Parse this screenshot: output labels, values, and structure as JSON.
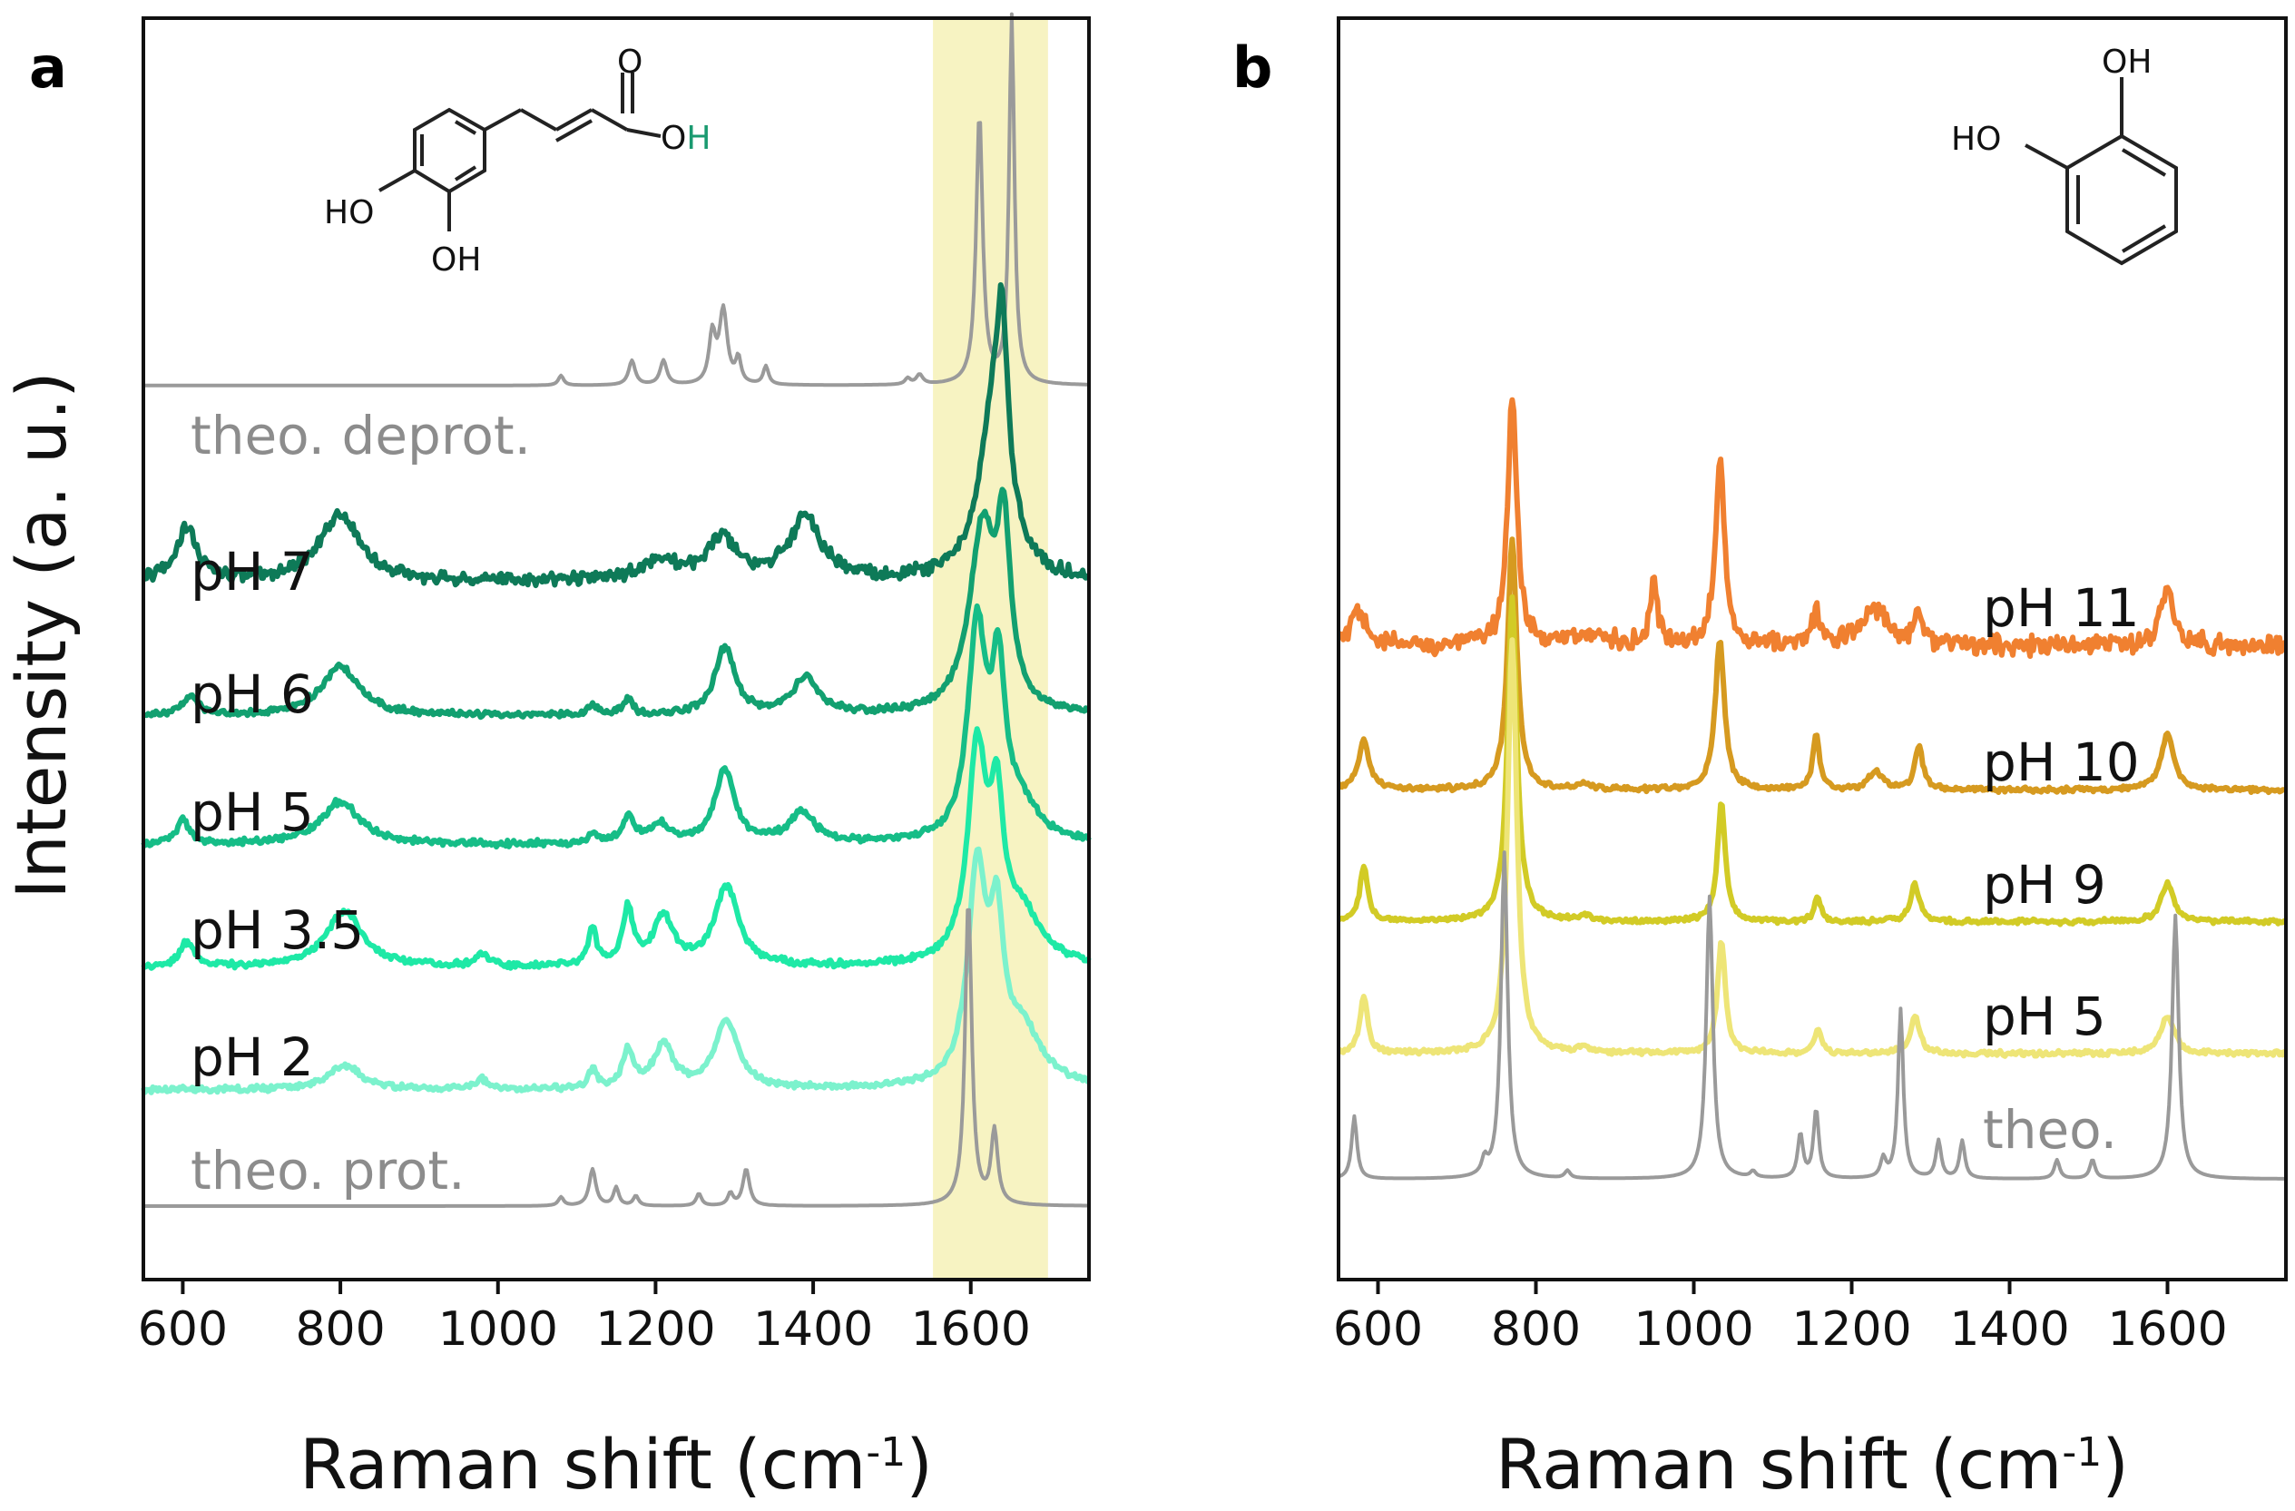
{
  "figure": {
    "ylabel": "Intensity (a. u.)",
    "panel_a_letter": "a",
    "panel_b_letter": "b"
  },
  "molecules": {
    "a": {
      "atom_O": "O",
      "atom_OH_O": "O",
      "atom_OH_H": "H",
      "ho_left": "HO",
      "oh_bottom": "OH"
    },
    "b": {
      "oh_top": "OH",
      "ho_left": "HO"
    }
  },
  "chart_data": [
    {
      "type": "line",
      "panel": "a",
      "title": "",
      "xlabel": "Raman shift (cm",
      "xlabel_sup": "-1",
      "xlabel_close": ")",
      "ylabel": "Intensity (a. u.)",
      "xlim": [
        550,
        1750
      ],
      "xticks": [
        600,
        800,
        1000,
        1200,
        1400,
        1600
      ],
      "highlight_band": {
        "x0": 1552,
        "x1": 1698,
        "color": "#f7f3c2"
      },
      "y_scale": "stacked, arbitrary units",
      "series": [
        {
          "name": "theo. deprot.",
          "color": "#9a9a9a",
          "label_color": "#8c8c8c",
          "baseline": 7.3,
          "noise": 0,
          "width": 4,
          "peaks": [
            [
              1611,
              2.2,
              5
            ],
            [
              1652,
              3.0,
              4
            ],
            [
              1286,
              0.6,
              6
            ],
            [
              1272,
              0.4,
              5
            ],
            [
              1210,
              0.2,
              5
            ],
            [
              1170,
              0.2,
              5
            ],
            [
              1305,
              0.2,
              4
            ],
            [
              1340,
              0.15,
              4
            ],
            [
              1080,
              0.08,
              4
            ],
            [
              1535,
              0.08,
              5
            ],
            [
              1520,
              0.05,
              4
            ]
          ]
        },
        {
          "name": "pH 7",
          "color": "#0e7a58",
          "label_color": "#111111",
          "baseline": 5.7,
          "noise": 0.08,
          "width": 6,
          "peaks": [
            [
              1630,
              1.4,
              22
            ],
            [
              1640,
              1.2,
              8
            ],
            [
              800,
              0.55,
              30
            ],
            [
              1390,
              0.5,
              25
            ],
            [
              1285,
              0.35,
              20
            ],
            [
              605,
              0.45,
              15
            ],
            [
              1205,
              0.15,
              30
            ]
          ]
        },
        {
          "name": "pH 6",
          "color": "#12a070",
          "label_color": "#111111",
          "baseline": 4.6,
          "noise": 0.04,
          "width": 6,
          "peaks": [
            [
              1615,
              1.5,
              20
            ],
            [
              1642,
              1.3,
              10
            ],
            [
              800,
              0.4,
              30
            ],
            [
              1288,
              0.55,
              15
            ],
            [
              1390,
              0.3,
              20
            ],
            [
              1165,
              0.12,
              8
            ],
            [
              1120,
              0.08,
              8
            ],
            [
              610,
              0.15,
              12
            ]
          ]
        },
        {
          "name": "pH 5",
          "color": "#16bd87",
          "label_color": "#111111",
          "baseline": 3.55,
          "noise": 0.04,
          "width": 6,
          "peaks": [
            [
              1608,
              1.7,
              14
            ],
            [
              1635,
              1.2,
              10
            ],
            [
              1660,
              0.3,
              30
            ],
            [
              800,
              0.35,
              30
            ],
            [
              1288,
              0.6,
              15
            ],
            [
              1385,
              0.25,
              20
            ],
            [
              1165,
              0.2,
              10
            ],
            [
              1205,
              0.15,
              15
            ],
            [
              1120,
              0.08,
              6
            ],
            [
              600,
              0.2,
              10
            ]
          ]
        },
        {
          "name": "pH 3.5",
          "color": "#1ee9a6",
          "label_color": "#111111",
          "baseline": 2.55,
          "noise": 0.04,
          "width": 6,
          "peaks": [
            [
              1608,
              1.7,
              14
            ],
            [
              1633,
              1.1,
              10
            ],
            [
              1665,
              0.4,
              30
            ],
            [
              805,
              0.45,
              28
            ],
            [
              1290,
              0.65,
              18
            ],
            [
              1165,
              0.45,
              8
            ],
            [
              1210,
              0.4,
              15
            ],
            [
              1120,
              0.3,
              6
            ],
            [
              980,
              0.1,
              10
            ],
            [
              605,
              0.2,
              10
            ]
          ]
        },
        {
          "name": "pH 2",
          "color": "#7cf2cd",
          "label_color": "#111111",
          "baseline": 1.55,
          "noise": 0.035,
          "width": 6,
          "peaks": [
            [
              1608,
              1.7,
              14
            ],
            [
              1633,
              1.1,
              10
            ],
            [
              1665,
              0.45,
              30
            ],
            [
              805,
              0.2,
              25
            ],
            [
              1290,
              0.55,
              18
            ],
            [
              1165,
              0.3,
              8
            ],
            [
              1210,
              0.35,
              15
            ],
            [
              1120,
              0.15,
              6
            ],
            [
              980,
              0.08,
              10
            ]
          ]
        },
        {
          "name": "theo. prot.",
          "color": "#9a9a9a",
          "label_color": "#8c8c8c",
          "baseline": 0.6,
          "noise": 0,
          "width": 4,
          "peaks": [
            [
              1597,
              2.5,
              5
            ],
            [
              1630,
              0.6,
              5
            ],
            [
              1120,
              0.3,
              5
            ],
            [
              1150,
              0.15,
              4
            ],
            [
              1315,
              0.3,
              5
            ],
            [
              1255,
              0.1,
              4
            ],
            [
              1295,
              0.1,
              4
            ],
            [
              1080,
              0.07,
              4
            ],
            [
              1175,
              0.08,
              4
            ]
          ]
        }
      ],
      "ylim": [
        0,
        10.3
      ]
    },
    {
      "type": "line",
      "panel": "b",
      "title": "",
      "xlabel": "Raman shift (cm",
      "xlabel_sup": "-1",
      "xlabel_close": ")",
      "xlim": [
        550,
        1750
      ],
      "xticks": [
        600,
        800,
        1000,
        1200,
        1400,
        1600
      ],
      "y_scale": "stacked, arbitrary units",
      "series": [
        {
          "name": "pH 11",
          "color": "#f08030",
          "label_color": "#111111",
          "baseline": 4.25,
          "noise": 0.12,
          "width": 6,
          "peaks": [
            [
              770,
              2.0,
              7
            ],
            [
              1033,
              1.5,
              7
            ],
            [
              950,
              0.5,
              5
            ],
            [
              1155,
              0.3,
              5
            ],
            [
              1230,
              0.3,
              20
            ],
            [
              1285,
              0.3,
              6
            ],
            [
              1600,
              0.45,
              10
            ],
            [
              575,
              0.25,
              12
            ],
            [
              870,
              0.1,
              20
            ]
          ]
        },
        {
          "name": "pH 10",
          "color": "#d69a20",
          "label_color": "#111111",
          "baseline": 3.1,
          "noise": 0.03,
          "width": 6,
          "peaks": [
            [
              770,
              2.0,
              7
            ],
            [
              1033,
              1.2,
              7
            ],
            [
              582,
              0.4,
              8
            ],
            [
              1155,
              0.45,
              5
            ],
            [
              1230,
              0.15,
              10
            ],
            [
              1285,
              0.35,
              6
            ],
            [
              1600,
              0.45,
              10
            ],
            [
              860,
              0.05,
              8
            ]
          ]
        },
        {
          "name": "pH 9",
          "color": "#d2cb26",
          "label_color": "#111111",
          "baseline": 2.05,
          "noise": 0.03,
          "width": 6,
          "peaks": [
            [
              770,
              2.6,
              7
            ],
            [
              1035,
              0.95,
              6
            ],
            [
              582,
              0.45,
              6
            ],
            [
              1157,
              0.2,
              5
            ],
            [
              1280,
              0.3,
              7
            ],
            [
              1600,
              0.3,
              10
            ],
            [
              860,
              0.05,
              8
            ]
          ]
        },
        {
          "name": "pH 5",
          "color": "#eee577",
          "label_color": "#111111",
          "baseline": 1.0,
          "noise": 0.03,
          "width": 6,
          "peaks": [
            [
              770,
              3.3,
              7
            ],
            [
              1035,
              0.9,
              6
            ],
            [
              582,
              0.45,
              6
            ],
            [
              1157,
              0.2,
              5
            ],
            [
              1280,
              0.3,
              7
            ],
            [
              1600,
              0.3,
              10
            ],
            [
              860,
              0.05,
              8
            ]
          ]
        },
        {
          "name": "theo.",
          "color": "#9a9a9a",
          "label_color": "#8c8c8c",
          "baseline": 0.0,
          "noise": 0,
          "width": 4,
          "peaks": [
            [
              760,
              2.6,
              5
            ],
            [
              1020,
              2.25,
              5
            ],
            [
              1610,
              2.1,
              5
            ],
            [
              1262,
              1.35,
              4
            ],
            [
              570,
              0.5,
              4
            ],
            [
              1155,
              0.55,
              4
            ],
            [
              1135,
              0.35,
              4
            ],
            [
              1310,
              0.3,
              4
            ],
            [
              1340,
              0.3,
              4
            ],
            [
              1460,
              0.15,
              4
            ],
            [
              1505,
              0.15,
              4
            ],
            [
              1240,
              0.15,
              4
            ],
            [
              735,
              0.12,
              4
            ],
            [
              840,
              0.06,
              4
            ],
            [
              1075,
              0.05,
              4
            ]
          ]
        }
      ],
      "ylim": [
        -0.8,
        9.25
      ]
    }
  ]
}
